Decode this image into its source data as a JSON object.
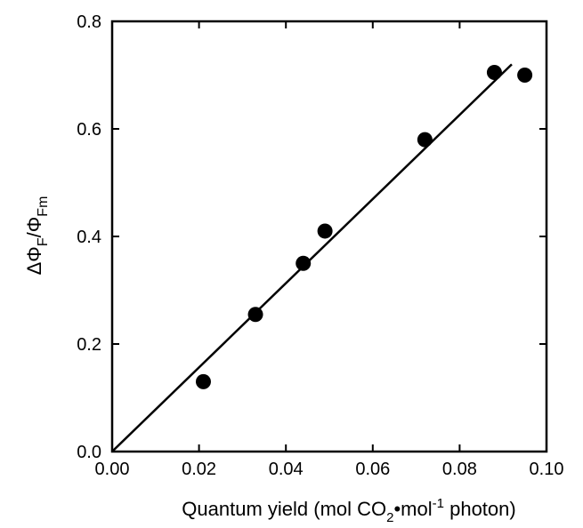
{
  "chart_data": {
    "type": "scatter",
    "title": "",
    "xlabel": {
      "prefix": "Quantum yield (mol CO",
      "sub": "2",
      "middle": "•mol",
      "sup": "-1",
      "suffix": " photon)"
    },
    "ylabel": {
      "delta": "ΔΦ",
      "sub1": "F",
      "slash": "/Φ",
      "sub2": "Fm"
    },
    "xlim": [
      0.0,
      0.1
    ],
    "ylim": [
      0.0,
      0.8
    ],
    "x_ticks": [
      "0.00",
      "0.02",
      "0.04",
      "0.06",
      "0.08",
      "0.10"
    ],
    "y_ticks": [
      "0.0",
      "0.2",
      "0.4",
      "0.6",
      "0.8"
    ],
    "grid": false,
    "series": [
      {
        "points": [
          {
            "x": 0.021,
            "y": 0.13
          },
          {
            "x": 0.033,
            "y": 0.255
          },
          {
            "x": 0.044,
            "y": 0.35
          },
          {
            "x": 0.049,
            "y": 0.41
          },
          {
            "x": 0.072,
            "y": 0.58
          },
          {
            "x": 0.088,
            "y": 0.705
          },
          {
            "x": 0.095,
            "y": 0.7
          }
        ]
      }
    ],
    "fit_line": {
      "x": [
        0.0,
        0.092
      ],
      "y": [
        0.0,
        0.72
      ]
    }
  }
}
